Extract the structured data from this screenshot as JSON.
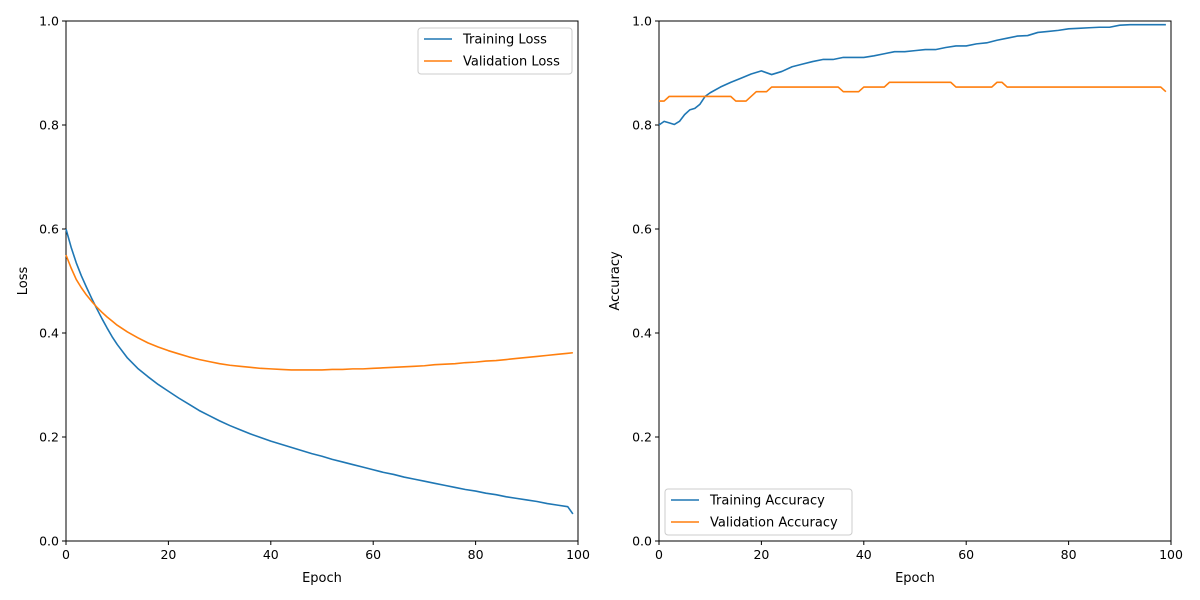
{
  "chart_data": [
    {
      "type": "line",
      "title": "",
      "xlabel": "Epoch",
      "ylabel": "Loss",
      "xlim": [
        0,
        100
      ],
      "ylim": [
        0,
        1.0
      ],
      "xticks": [
        "0",
        "20",
        "40",
        "60",
        "80",
        "100"
      ],
      "yticks": [
        "0.0",
        "0.2",
        "0.4",
        "0.6",
        "0.8",
        "1.0"
      ],
      "grid": false,
      "legend_position": "top-right",
      "x": [
        0,
        1,
        2,
        3,
        4,
        5,
        6,
        7,
        8,
        9,
        10,
        12,
        14,
        16,
        18,
        20,
        22,
        24,
        26,
        28,
        30,
        32,
        34,
        36,
        38,
        40,
        42,
        44,
        46,
        48,
        50,
        52,
        54,
        56,
        58,
        60,
        62,
        64,
        66,
        68,
        70,
        72,
        74,
        76,
        78,
        80,
        82,
        84,
        86,
        88,
        90,
        92,
        94,
        96,
        98,
        99
      ],
      "series": [
        {
          "name": "Training Loss",
          "color": "#1f77b4",
          "values": [
            0.6,
            0.565,
            0.535,
            0.51,
            0.488,
            0.467,
            0.447,
            0.428,
            0.41,
            0.393,
            0.378,
            0.352,
            0.332,
            0.316,
            0.301,
            0.288,
            0.275,
            0.263,
            0.251,
            0.241,
            0.231,
            0.222,
            0.214,
            0.206,
            0.199,
            0.192,
            0.186,
            0.18,
            0.174,
            0.168,
            0.163,
            0.157,
            0.152,
            0.147,
            0.142,
            0.137,
            0.132,
            0.128,
            0.123,
            0.119,
            0.115,
            0.111,
            0.107,
            0.103,
            0.099,
            0.096,
            0.092,
            0.089,
            0.085,
            0.082,
            0.079,
            0.076,
            0.072,
            0.069,
            0.066,
            0.052
          ]
        },
        {
          "name": "Validation Loss",
          "color": "#ff7f0e",
          "values": [
            0.55,
            0.525,
            0.503,
            0.487,
            0.473,
            0.461,
            0.45,
            0.44,
            0.431,
            0.423,
            0.415,
            0.402,
            0.391,
            0.381,
            0.373,
            0.366,
            0.36,
            0.354,
            0.349,
            0.345,
            0.341,
            0.338,
            0.336,
            0.334,
            0.332,
            0.331,
            0.33,
            0.329,
            0.329,
            0.329,
            0.329,
            0.33,
            0.33,
            0.331,
            0.331,
            0.332,
            0.333,
            0.334,
            0.335,
            0.336,
            0.337,
            0.339,
            0.34,
            0.341,
            0.343,
            0.344,
            0.346,
            0.347,
            0.349,
            0.351,
            0.353,
            0.355,
            0.357,
            0.359,
            0.361,
            0.362
          ]
        }
      ]
    },
    {
      "type": "line",
      "title": "",
      "xlabel": "Epoch",
      "ylabel": "Accuracy",
      "xlim": [
        0,
        100
      ],
      "ylim": [
        0,
        1.0
      ],
      "xticks": [
        "0",
        "20",
        "40",
        "60",
        "80",
        "100"
      ],
      "yticks": [
        "0.0",
        "0.2",
        "0.4",
        "0.6",
        "0.8",
        "1.0"
      ],
      "grid": false,
      "legend_position": "bottom-left",
      "series": [
        {
          "name": "Training Accuracy",
          "color": "#1f77b4",
          "x": [
            0,
            1,
            2,
            3,
            4,
            5,
            6,
            7,
            8,
            9,
            10,
            12,
            14,
            16,
            18,
            20,
            22,
            24,
            26,
            28,
            30,
            32,
            34,
            36,
            38,
            40,
            42,
            44,
            46,
            48,
            50,
            52,
            54,
            56,
            58,
            60,
            62,
            64,
            66,
            68,
            70,
            72,
            74,
            76,
            78,
            80,
            82,
            84,
            86,
            88,
            90,
            92,
            94,
            96,
            98,
            99
          ],
          "values": [
            0.8,
            0.807,
            0.804,
            0.801,
            0.807,
            0.82,
            0.829,
            0.832,
            0.84,
            0.855,
            0.862,
            0.873,
            0.882,
            0.89,
            0.898,
            0.904,
            0.897,
            0.903,
            0.912,
            0.917,
            0.922,
            0.926,
            0.926,
            0.93,
            0.93,
            0.93,
            0.933,
            0.937,
            0.941,
            0.941,
            0.943,
            0.945,
            0.945,
            0.949,
            0.952,
            0.952,
            0.956,
            0.958,
            0.963,
            0.967,
            0.971,
            0.972,
            0.978,
            0.98,
            0.982,
            0.985,
            0.986,
            0.987,
            0.988,
            0.988,
            0.992,
            0.993,
            0.993,
            0.993,
            0.993,
            0.993
          ]
        },
        {
          "name": "Validation Accuracy",
          "color": "#ff7f0e",
          "x": [
            0,
            1,
            2,
            3,
            14,
            15,
            17,
            19,
            21,
            22,
            35,
            36,
            39,
            40,
            44,
            45,
            57,
            58,
            65,
            66,
            67,
            68,
            98,
            99
          ],
          "values": [
            0.846,
            0.846,
            0.855,
            0.855,
            0.855,
            0.846,
            0.846,
            0.864,
            0.864,
            0.873,
            0.873,
            0.864,
            0.864,
            0.873,
            0.873,
            0.882,
            0.882,
            0.873,
            0.873,
            0.882,
            0.882,
            0.873,
            0.873,
            0.864
          ]
        }
      ]
    }
  ]
}
